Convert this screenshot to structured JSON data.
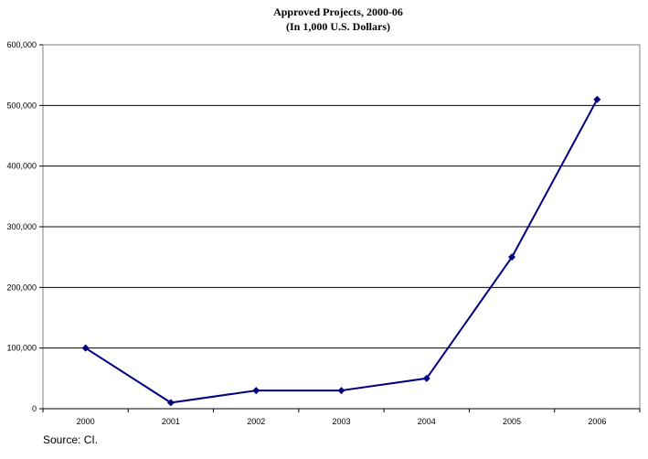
{
  "chart_data": {
    "type": "line",
    "title": "Approved Projects, 2000-06",
    "subtitle": "(In 1,000 U.S. Dollars)",
    "categories": [
      "2000",
      "2001",
      "2002",
      "2003",
      "2004",
      "2005",
      "2006"
    ],
    "series": [
      {
        "values": [
          100000,
          10000,
          30000,
          30000,
          50000,
          250000,
          510000
        ]
      }
    ],
    "y_ticks": [
      "0",
      "100,000",
      "200,000",
      "300,000",
      "400,000",
      "500,000",
      "600,000"
    ],
    "ylim": [
      0,
      600000
    ],
    "grid": "horizontal",
    "legend": "none",
    "line_color": "#000080",
    "marker": "diamond"
  },
  "source_note": "Source: CI."
}
